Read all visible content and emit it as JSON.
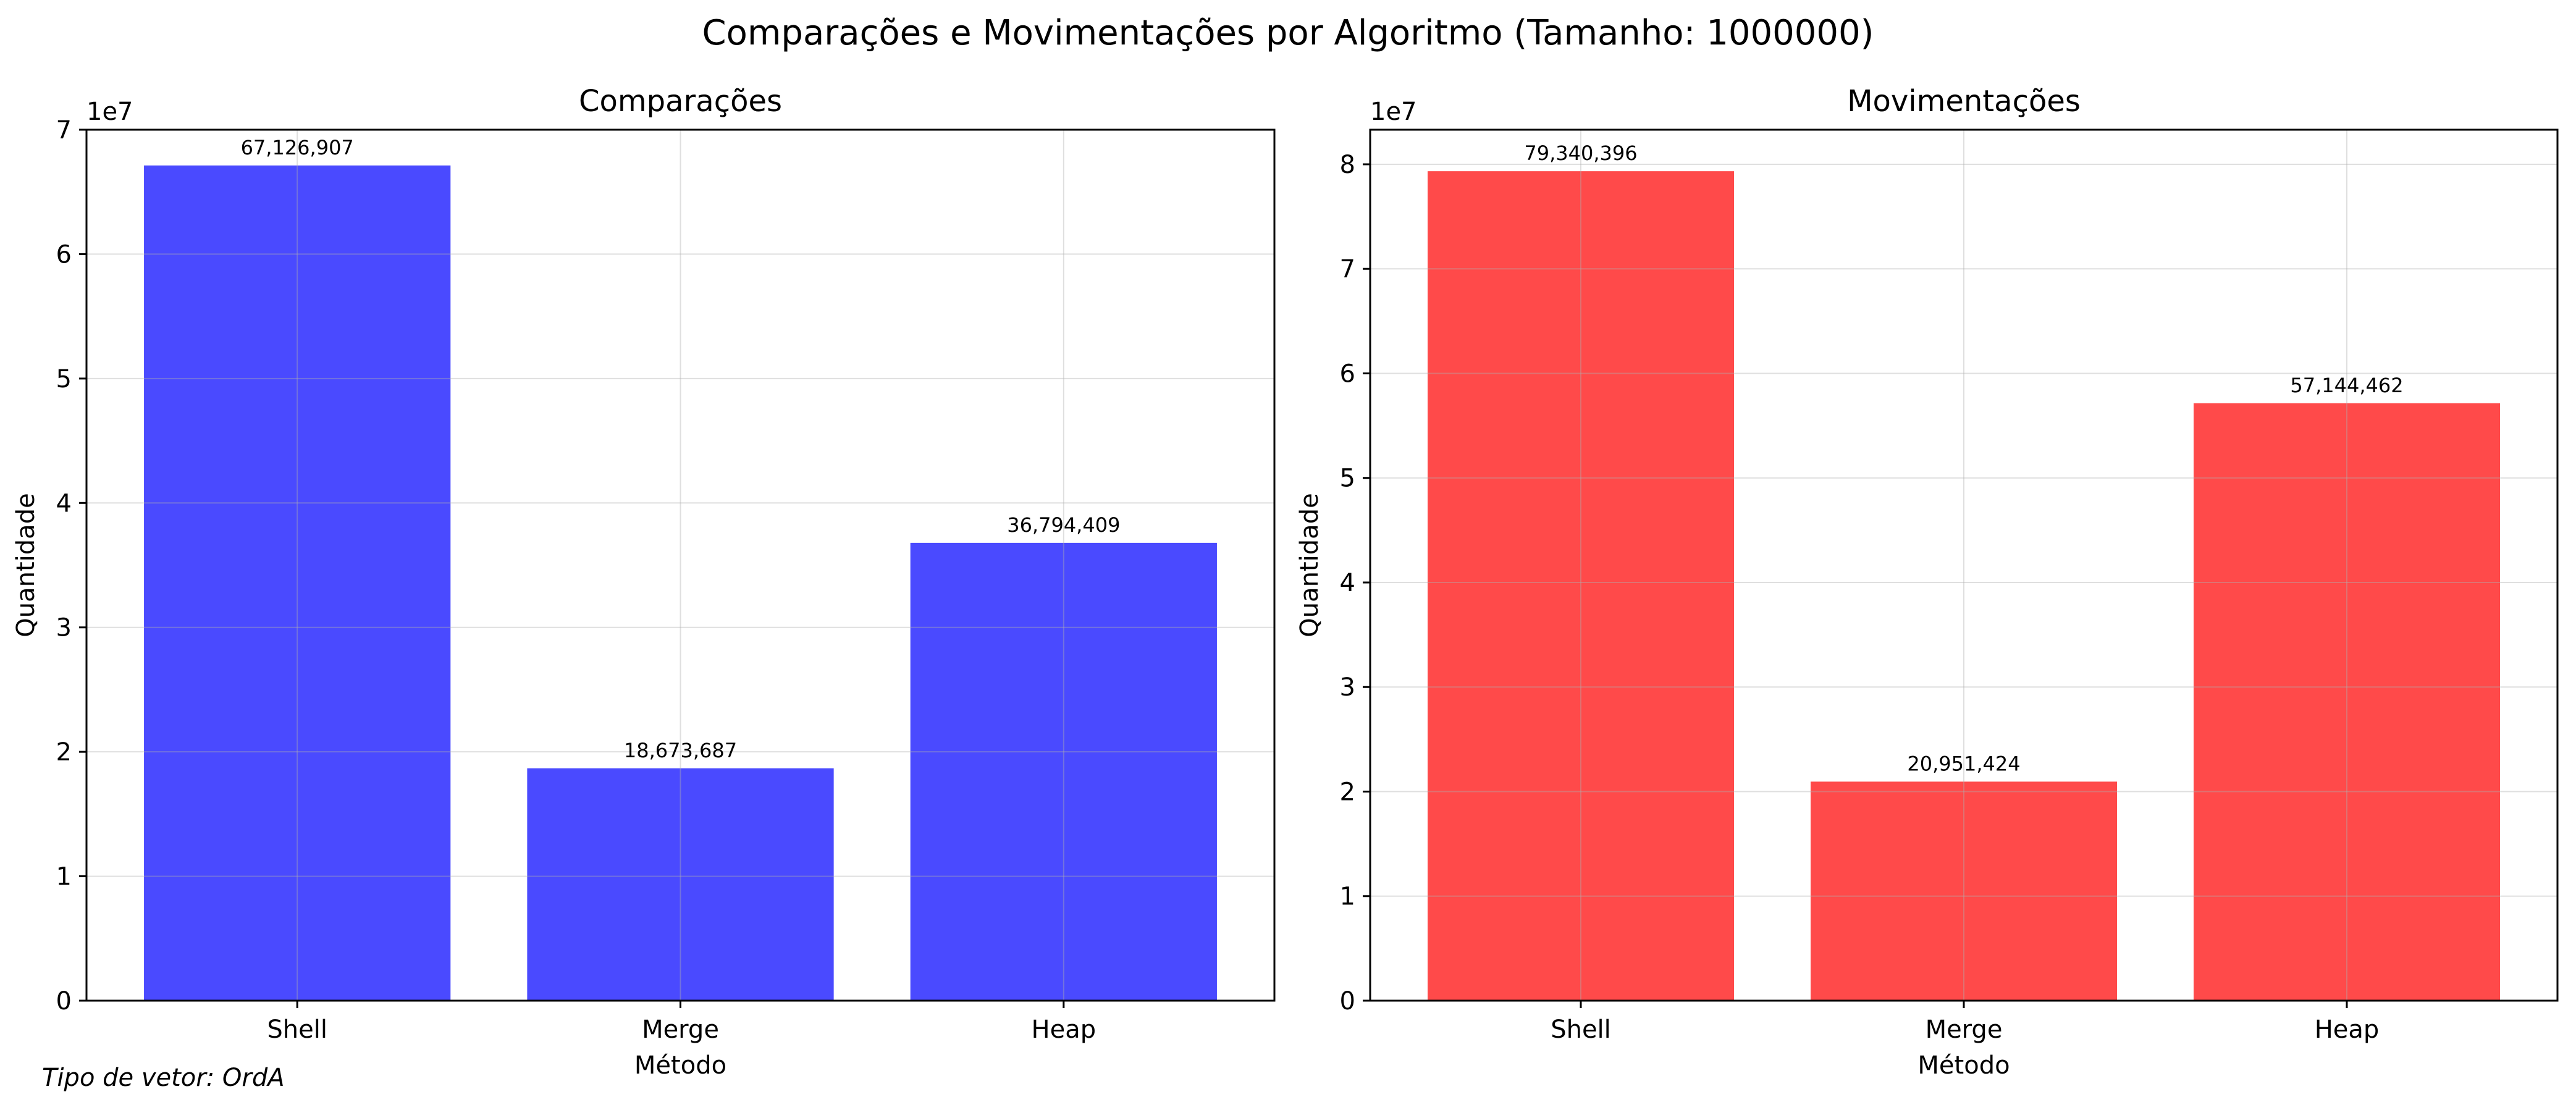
{
  "figure": {
    "title": "Comparações e Movimentações por Algoritmo (Tamanho: 1000000)",
    "footnote": "Tipo de vetor: OrdA"
  },
  "chart_data": [
    {
      "type": "bar",
      "title": "Comparações",
      "xlabel": "Método",
      "ylabel": "Quantidade",
      "categories": [
        "Shell",
        "Merge",
        "Heap"
      ],
      "values": [
        67126907,
        18673687,
        36794409
      ],
      "value_labels": [
        "67,126,907",
        "18,673,687",
        "36,794,409"
      ],
      "ylim": [
        0,
        70000000
      ],
      "yticks": [
        0,
        10000000,
        20000000,
        30000000,
        40000000,
        50000000,
        60000000,
        70000000
      ],
      "ytick_labels": [
        "0",
        "1",
        "2",
        "3",
        "4",
        "5",
        "6",
        "7"
      ],
      "y_offset_label": "1e7",
      "grid": true,
      "color": "#4a4aff"
    },
    {
      "type": "bar",
      "title": "Movimentações",
      "xlabel": "Método",
      "ylabel": "Quantidade",
      "categories": [
        "Shell",
        "Merge",
        "Heap"
      ],
      "values": [
        79340396,
        20951424,
        57144462
      ],
      "value_labels": [
        "79,340,396",
        "20,951,424",
        "57,144,462"
      ],
      "ylim": [
        0,
        83307416
      ],
      "yticks": [
        0,
        10000000,
        20000000,
        30000000,
        40000000,
        50000000,
        60000000,
        70000000,
        80000000
      ],
      "ytick_labels": [
        "0",
        "1",
        "2",
        "3",
        "4",
        "5",
        "6",
        "7",
        "8"
      ],
      "y_offset_label": "1e7",
      "grid": true,
      "color": "#ff4a4a"
    }
  ]
}
